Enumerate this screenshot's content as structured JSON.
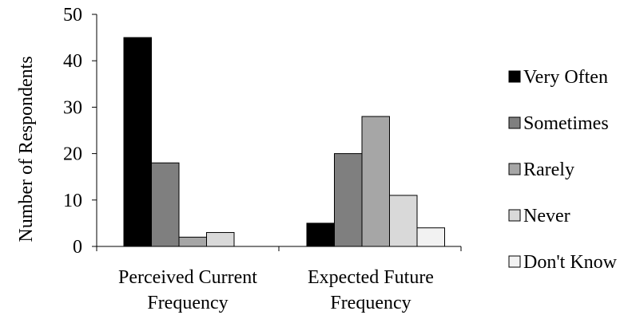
{
  "chart_data": {
    "type": "bar",
    "categories": [
      [
        "Perceived Current",
        "Frequency"
      ],
      [
        "Expected Future",
        "Frequency"
      ]
    ],
    "series": [
      {
        "name": "Very Often",
        "color": "#000000",
        "values": [
          45,
          5
        ]
      },
      {
        "name": "Sometimes",
        "color": "#7f7f7f",
        "values": [
          18,
          20
        ]
      },
      {
        "name": "Rarely",
        "color": "#a6a6a6",
        "values": [
          2,
          28
        ]
      },
      {
        "name": "Never",
        "color": "#d9d9d9",
        "values": [
          3,
          11
        ]
      },
      {
        "name": "Don't Know",
        "color": "#f2f2f2",
        "values": [
          0,
          4
        ]
      }
    ],
    "ylabel": "Number of Respondents",
    "ylim": [
      0,
      50
    ],
    "yticks": [
      0,
      10,
      20,
      30,
      40,
      50
    ],
    "grid": false,
    "legend_position": "right"
  }
}
